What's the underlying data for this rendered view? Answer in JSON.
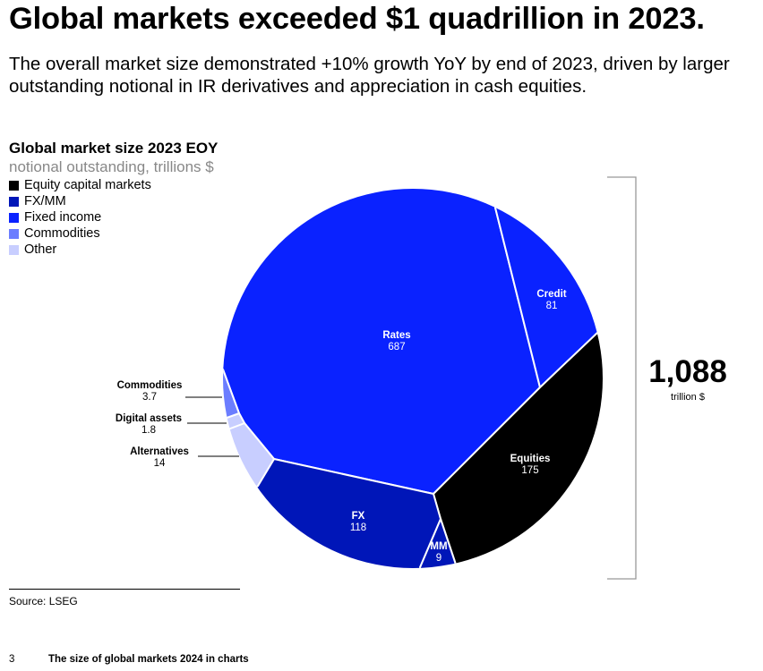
{
  "header": {
    "title": "Global markets exceeded $1 quadrillion in 2023.",
    "subtitle_line1": "The overall market size demonstrated +10% growth YoY by end of 2023, driven by larger",
    "subtitle_line2": "outstanding notional in IR derivatives and appreciation in cash equities."
  },
  "chart_data": {
    "type": "pie",
    "title": "Global market size 2023 EOY",
    "subtitle": "notional outstanding, trillions $",
    "legend": [
      {
        "label": "Equity capital markets",
        "color": "#000000"
      },
      {
        "label": "FX/MM",
        "color": "#0016b8"
      },
      {
        "label": "Fixed income",
        "color": "#0a22ff"
      },
      {
        "label": "Commodities",
        "color": "#6b7dff"
      },
      {
        "label": "Other",
        "color": "#c8ceff"
      }
    ],
    "legend_placement": "top-left",
    "slices": [
      {
        "label": "Rates",
        "value": "687",
        "group": "Fixed income",
        "color": "#0a22ff"
      },
      {
        "label": "Credit",
        "value": "81",
        "group": "Fixed income",
        "color": "#0a22ff"
      },
      {
        "label": "Equities",
        "value": "175",
        "group": "Equity capital markets",
        "color": "#000000"
      },
      {
        "label": "MM",
        "value": "9",
        "group": "FX/MM",
        "color": "#0016b8"
      },
      {
        "label": "FX",
        "value": "118",
        "group": "FX/MM",
        "color": "#0016b8"
      },
      {
        "label": "Alternatives",
        "value": "14",
        "group": "Other",
        "color": "#c8ceff"
      },
      {
        "label": "Digital assets",
        "value": "1.8",
        "group": "Other",
        "color": "#c8ceff"
      },
      {
        "label": "Commodities",
        "value": "3.7",
        "group": "Commodities",
        "color": "#6b7dff"
      }
    ],
    "total": "1,088",
    "total_unit": "trillion $"
  },
  "footer": {
    "source": "Source: LSEG",
    "page_number": "3",
    "doc_title": "The size of global markets 2024 in charts"
  }
}
